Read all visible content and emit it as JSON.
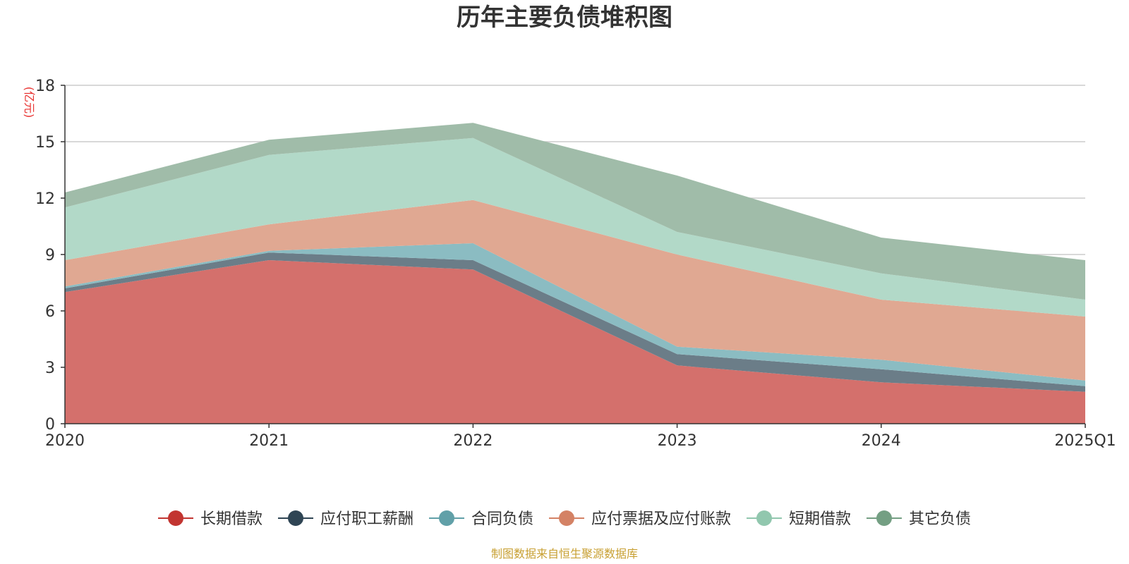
{
  "chart_data": {
    "type": "area",
    "stacked": true,
    "title": "历年主要负债堆积图",
    "unit_label": "(亿元)",
    "categories": [
      "2020",
      "2021",
      "2022",
      "2023",
      "2024",
      "2025Q1"
    ],
    "ylim": [
      0,
      18
    ],
    "yticks": [
      0,
      3,
      6,
      9,
      12,
      15,
      18
    ],
    "grid": true,
    "legend_position": "bottom",
    "series": [
      {
        "name": "长期借款",
        "color": "#c23531",
        "area_color": "#d4706c",
        "values": [
          7.0,
          8.7,
          8.2,
          3.1,
          2.2,
          1.7
        ]
      },
      {
        "name": "应付职工薪酬",
        "color": "#2f4554",
        "area_color": "#6b7d88",
        "values": [
          0.2,
          0.4,
          0.5,
          0.6,
          0.7,
          0.3
        ]
      },
      {
        "name": "合同负债",
        "color": "#61a0a8",
        "area_color": "#8bbcc2",
        "values": [
          0.1,
          0.1,
          0.9,
          0.4,
          0.5,
          0.3
        ]
      },
      {
        "name": "应付票据及应付账款",
        "color": "#d48265",
        "area_color": "#e0a892",
        "values": [
          1.4,
          1.4,
          2.3,
          4.9,
          3.2,
          3.4
        ]
      },
      {
        "name": "短期借款",
        "color": "#91c7ae",
        "area_color": "#b2d9c8",
        "values": [
          2.8,
          3.7,
          3.3,
          1.2,
          1.4,
          0.9
        ]
      },
      {
        "name": "其它负债",
        "color": "#749f83",
        "area_color": "#a0bca9",
        "values": [
          0.8,
          0.8,
          0.8,
          3.0,
          1.9,
          2.1
        ]
      }
    ],
    "source_note": "制图数据来自恒生聚源数据库"
  }
}
